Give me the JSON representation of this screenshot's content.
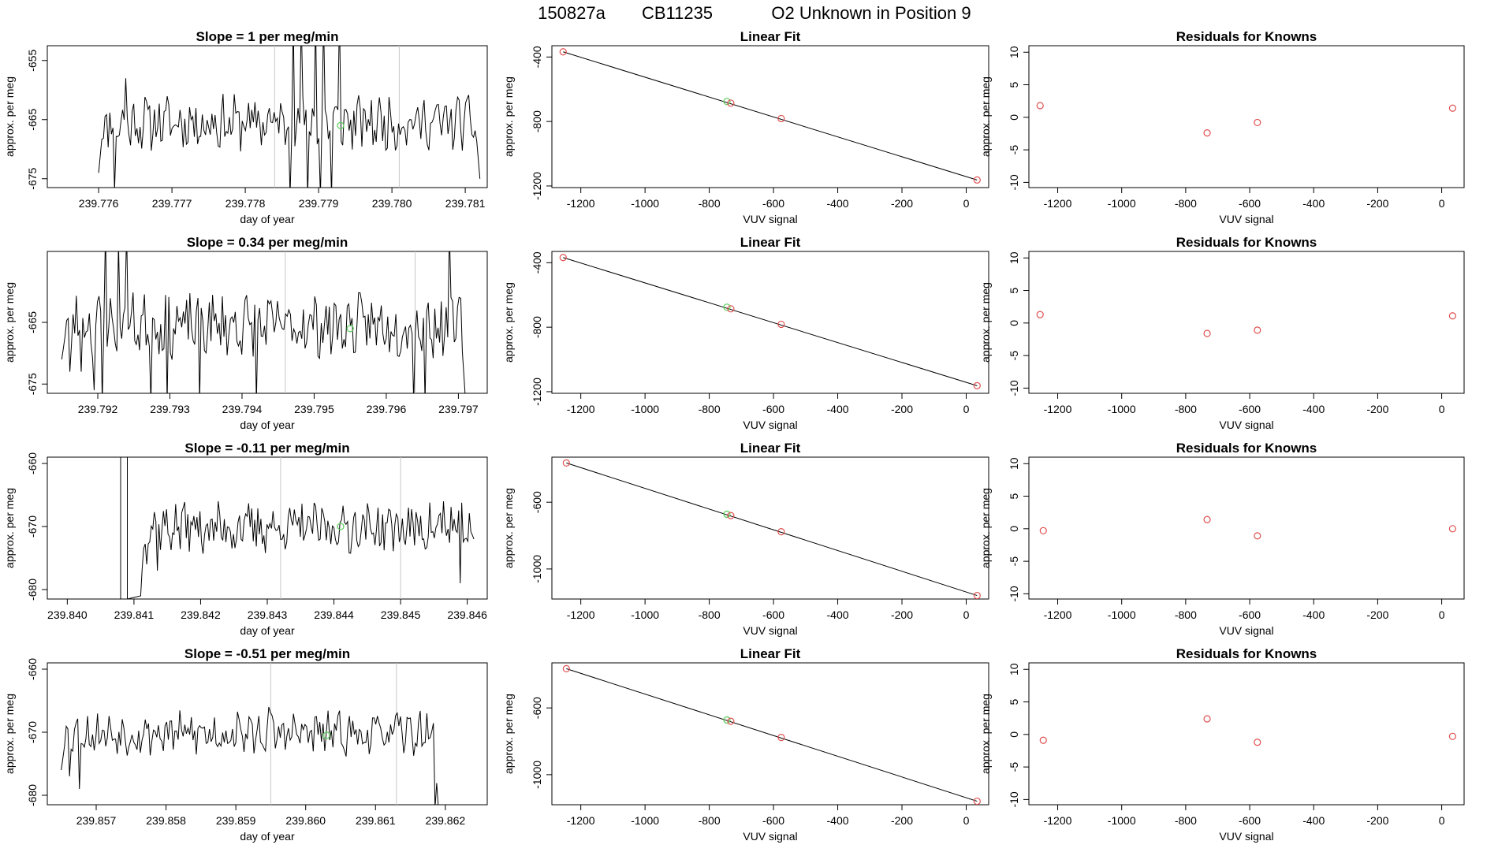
{
  "figure": {
    "run_id": "150827a",
    "tank_id": "CB11235",
    "description": "O2 Unknown in Position  9"
  },
  "colors": {
    "trace": "#000000",
    "known": "#e05050",
    "unknown": "#60d060",
    "vline": "#c8c8c8",
    "axis": "#000000"
  },
  "chart_data": [
    {
      "type": "line",
      "row": 0,
      "title": "Slope =  1  per meg/min",
      "xlabel": "day of year",
      "ylabel": "approx. per meg",
      "xlim": [
        239.7753,
        239.7813
      ],
      "ylim": [
        -676.5,
        -652.5
      ],
      "xticks": [
        239.776,
        239.777,
        239.778,
        239.779,
        239.78,
        239.781
      ],
      "xtick_labels": [
        "239.776",
        "239.777",
        "239.778",
        "239.779",
        "239.780",
        "239.781"
      ],
      "yticks": [
        -675,
        -665,
        -655
      ],
      "ytick_labels": [
        "-675",
        "-665",
        "-655"
      ],
      "vlines": [
        239.7784,
        239.7801
      ],
      "series": {
        "x_start": 239.776,
        "x_end": 239.7812,
        "n": 240,
        "mean": -665.5,
        "amp": 3.8,
        "start_drop": -674,
        "end_drop": -675,
        "spikes": [
          [
            0.5,
            -678
          ],
          [
            0.51,
            -648
          ],
          [
            0.53,
            -648
          ],
          [
            0.55,
            -678
          ],
          [
            0.57,
            -648
          ],
          [
            0.58,
            -678
          ],
          [
            0.59,
            -648
          ],
          [
            0.61,
            -678
          ],
          [
            0.63,
            -647
          ],
          [
            0.04,
            -677
          ],
          [
            0.07,
            -658
          ]
        ],
        "seed": 11
      },
      "marker": {
        "x": 239.7793,
        "y": -666
      }
    },
    {
      "type": "scatter_fit",
      "row": 0,
      "title": "Linear Fit",
      "xlabel": "VUV signal",
      "ylabel": "approx. per meg",
      "xlim": [
        -1290,
        70
      ],
      "ylim": [
        -1210,
        -330
      ],
      "xticks": [
        -1200,
        -1000,
        -800,
        -600,
        -400,
        -200,
        0
      ],
      "xtick_labels": [
        "-1200",
        "-1000",
        "-800",
        "-600",
        "-400",
        "-200",
        "0"
      ],
      "yticks": [
        -1200,
        -800,
        -400
      ],
      "ytick_labels": [
        "-1200",
        "-800",
        "-400"
      ],
      "fit": {
        "slope": 0.625,
        "intercept": -1183
      },
      "knowns": [
        [
          -1255,
          -368
        ],
        [
          -733,
          -686
        ],
        [
          -576,
          -782
        ],
        [
          34,
          -1163
        ]
      ],
      "unknown": [
        -745,
        -676
      ]
    },
    {
      "type": "residuals",
      "row": 0,
      "title": "Residuals for Knowns",
      "xlabel": "VUV signal",
      "ylabel": "approx. per meg",
      "xlim": [
        -1290,
        70
      ],
      "ylim": [
        -10.8,
        11
      ],
      "xticks": [
        -1200,
        -1000,
        -800,
        -600,
        -400,
        -200,
        0
      ],
      "xtick_labels": [
        "-1200",
        "-1000",
        "-800",
        "-600",
        "-400",
        "-200",
        "0"
      ],
      "yticks": [
        -10,
        -5,
        0,
        5,
        10
      ],
      "ytick_labels": [
        "-10",
        "-5",
        "0",
        "5",
        "10"
      ],
      "points": [
        [
          -1255,
          1.8
        ],
        [
          -733,
          -2.4
        ],
        [
          -576,
          -0.8
        ],
        [
          34,
          1.4
        ]
      ]
    },
    {
      "type": "line",
      "row": 1,
      "title": "Slope =  0.34  per meg/min",
      "xlabel": "day of year",
      "ylabel": "approx. per meg",
      "xlim": [
        239.7913,
        239.7974
      ],
      "ylim": [
        -676.5,
        -653.5
      ],
      "xticks": [
        239.792,
        239.793,
        239.794,
        239.795,
        239.796,
        239.797
      ],
      "xtick_labels": [
        "239.792",
        "239.793",
        "239.794",
        "239.795",
        "239.796",
        "239.797"
      ],
      "yticks": [
        -675,
        -665
      ],
      "ytick_labels": [
        "-675",
        "-665"
      ],
      "vlines": [
        239.7946,
        239.7964
      ],
      "series": {
        "x_start": 239.7915,
        "x_end": 239.7971,
        "n": 250,
        "mean": -665.5,
        "amp": 4.2,
        "start_drop": -671,
        "end_drop": -678,
        "spikes": [
          [
            0.02,
            -673
          ],
          [
            0.05,
            -673
          ],
          [
            0.08,
            -676
          ],
          [
            0.1,
            -678
          ],
          [
            0.11,
            -650
          ],
          [
            0.14,
            -652
          ],
          [
            0.16,
            -650
          ],
          [
            0.22,
            -678
          ],
          [
            0.26,
            -678
          ],
          [
            0.34,
            -678
          ],
          [
            0.48,
            -678
          ],
          [
            0.87,
            -678
          ],
          [
            0.9,
            -678
          ],
          [
            0.96,
            -650
          ]
        ],
        "seed": 23
      },
      "marker": {
        "x": 239.7955,
        "y": -666
      }
    },
    {
      "type": "scatter_fit",
      "row": 1,
      "title": "Linear Fit",
      "xlabel": "VUV signal",
      "ylabel": "approx. per meg",
      "xlim": [
        -1290,
        70
      ],
      "ylim": [
        -1210,
        -330
      ],
      "xticks": [
        -1200,
        -1000,
        -800,
        -600,
        -400,
        -200,
        0
      ],
      "xtick_labels": [
        "-1200",
        "-1000",
        "-800",
        "-600",
        "-400",
        "-200",
        "0"
      ],
      "yticks": [
        -1200,
        -800,
        -400
      ],
      "ytick_labels": [
        "-1200",
        "-800",
        "-400"
      ],
      "fit": {
        "slope": 0.625,
        "intercept": -1183
      },
      "knowns": [
        [
          -1255,
          -368
        ],
        [
          -733,
          -686
        ],
        [
          -576,
          -782
        ],
        [
          34,
          -1163
        ]
      ],
      "unknown": [
        -745,
        -676
      ]
    },
    {
      "type": "residuals",
      "row": 1,
      "title": "Residuals for Knowns",
      "xlabel": "VUV signal",
      "ylabel": "approx. per meg",
      "xlim": [
        -1290,
        70
      ],
      "ylim": [
        -10.8,
        11
      ],
      "xticks": [
        -1200,
        -1000,
        -800,
        -600,
        -400,
        -200,
        0
      ],
      "xtick_labels": [
        "-1200",
        "-1000",
        "-800",
        "-600",
        "-400",
        "-200",
        "0"
      ],
      "yticks": [
        -10,
        -5,
        0,
        5,
        10
      ],
      "ytick_labels": [
        "-10",
        "-5",
        "0",
        "5",
        "10"
      ],
      "points": [
        [
          -1255,
          1.3
        ],
        [
          -733,
          -1.6
        ],
        [
          -576,
          -1.1
        ],
        [
          34,
          1.1
        ]
      ]
    },
    {
      "type": "line",
      "row": 2,
      "title": "Slope =  -0.11  per meg/min",
      "xlabel": "day of year",
      "ylabel": "approx. per meg",
      "xlim": [
        239.8397,
        239.8463
      ],
      "ylim": [
        -681.5,
        -659
      ],
      "xticks": [
        239.84,
        239.841,
        239.842,
        239.843,
        239.844,
        239.845,
        239.846
      ],
      "xtick_labels": [
        "239.840",
        "239.841",
        "239.842",
        "239.843",
        "239.844",
        "239.845",
        "239.846"
      ],
      "yticks": [
        -680,
        -670,
        -660
      ],
      "ytick_labels": [
        "-680",
        "-670",
        "-660"
      ],
      "vlines": [
        239.8432,
        239.845
      ],
      "series": {
        "x_start": 239.8411,
        "x_end": 239.8461,
        "n": 220,
        "mean": -670.2,
        "amp": 3.3,
        "start_drop": -680,
        "end_drop": -672,
        "spikes": [
          [
            0.0,
            -681
          ],
          [
            0.02,
            -676
          ],
          [
            0.05,
            -677
          ],
          [
            0.13,
            -667
          ],
          [
            0.91,
            -666
          ],
          [
            0.96,
            -679
          ]
        ],
        "seed": 37,
        "pre": [
          [
            239.8408,
            -681.5
          ],
          [
            239.8408,
            -659
          ],
          [
            239.8409,
            -659
          ],
          [
            239.8409,
            -681.5
          ]
        ]
      },
      "marker": {
        "x": 239.8441,
        "y": -670
      }
    },
    {
      "type": "scatter_fit",
      "row": 2,
      "title": "Linear Fit",
      "xlabel": "VUV signal",
      "ylabel": "approx. per meg",
      "xlim": [
        -1290,
        70
      ],
      "ylim": [
        -1180,
        -330
      ],
      "xticks": [
        -1200,
        -1000,
        -800,
        -600,
        -400,
        -200,
        0
      ],
      "xtick_labels": [
        "-1200",
        "-1000",
        "-800",
        "-600",
        "-400",
        "-200",
        "0"
      ],
      "yticks": [
        -1000,
        -600
      ],
      "ytick_labels": [
        "-1000",
        "-600"
      ],
      "fit": {
        "slope": 0.62,
        "intercept": -1138
      },
      "knowns": [
        [
          -1245,
          -365
        ],
        [
          -733,
          -680
        ],
        [
          -576,
          -777
        ],
        [
          34,
          -1159
        ]
      ],
      "unknown": [
        -745,
        -672
      ]
    },
    {
      "type": "residuals",
      "row": 2,
      "title": "Residuals for Knowns",
      "xlabel": "VUV signal",
      "ylabel": "approx. per meg",
      "xlim": [
        -1290,
        70
      ],
      "ylim": [
        -10.8,
        11
      ],
      "xticks": [
        -1200,
        -1000,
        -800,
        -600,
        -400,
        -200,
        0
      ],
      "xtick_labels": [
        "-1200",
        "-1000",
        "-800",
        "-600",
        "-400",
        "-200",
        "0"
      ],
      "yticks": [
        -10,
        -5,
        0,
        5,
        10
      ],
      "ytick_labels": [
        "-10",
        "-5",
        "0",
        "5",
        "10"
      ],
      "points": [
        [
          -1245,
          -0.3
        ],
        [
          -733,
          1.4
        ],
        [
          -576,
          -1.1
        ],
        [
          34,
          0.0
        ]
      ]
    },
    {
      "type": "line",
      "row": 3,
      "title": "Slope =  -0.51  per meg/min",
      "xlabel": "day of year",
      "ylabel": "approx. per meg",
      "xlim": [
        239.8563,
        239.8626
      ],
      "ylim": [
        -681.5,
        -659
      ],
      "xticks": [
        239.857,
        239.858,
        239.859,
        239.86,
        239.861,
        239.862
      ],
      "xtick_labels": [
        "239.857",
        "239.858",
        "239.859",
        "239.860",
        "239.861",
        "239.862"
      ],
      "yticks": [
        -680,
        -670,
        -660
      ],
      "ytick_labels": [
        "-680",
        "-670",
        "-660"
      ],
      "vlines": [
        239.8595,
        239.8613
      ],
      "series": {
        "x_start": 239.8565,
        "x_end": 239.8619,
        "n": 230,
        "mean": -670.2,
        "amp": 2.8,
        "start_drop": -676,
        "end_drop": -682,
        "spikes": [
          [
            0.02,
            -677
          ],
          [
            0.03,
            -673
          ],
          [
            0.05,
            -679
          ],
          [
            0.55,
            -666
          ],
          [
            0.97,
            -667
          ],
          [
            0.99,
            -682
          ]
        ],
        "seed": 53
      },
      "marker": {
        "x": 239.8603,
        "y": -670.5
      }
    },
    {
      "type": "scatter_fit",
      "row": 3,
      "title": "Linear Fit",
      "xlabel": "VUV signal",
      "ylabel": "approx. per meg",
      "xlim": [
        -1290,
        70
      ],
      "ylim": [
        -1180,
        -330
      ],
      "xticks": [
        -1200,
        -1000,
        -800,
        -600,
        -400,
        -200,
        0
      ],
      "xtick_labels": [
        "-1200",
        "-1000",
        "-800",
        "-600",
        "-400",
        "-200",
        "0"
      ],
      "yticks": [
        -1000,
        -600
      ],
      "ytick_labels": [
        "-1000",
        "-600"
      ],
      "fit": {
        "slope": 0.62,
        "intercept": -1138
      },
      "knowns": [
        [
          -1245,
          -365
        ],
        [
          -733,
          -680
        ],
        [
          -576,
          -777
        ],
        [
          34,
          -1159
        ]
      ],
      "unknown": [
        -745,
        -672
      ]
    },
    {
      "type": "residuals",
      "row": 3,
      "title": "Residuals for Knowns",
      "xlabel": "VUV signal",
      "ylabel": "approx. per meg",
      "xlim": [
        -1290,
        70
      ],
      "ylim": [
        -10.8,
        11
      ],
      "xticks": [
        -1200,
        -1000,
        -800,
        -600,
        -400,
        -200,
        0
      ],
      "xtick_labels": [
        "-1200",
        "-1000",
        "-800",
        "-600",
        "-400",
        "-200",
        "0"
      ],
      "yticks": [
        -10,
        -5,
        0,
        5,
        10
      ],
      "ytick_labels": [
        "-10",
        "-5",
        "0",
        "5",
        "10"
      ],
      "points": [
        [
          -1245,
          -0.9
        ],
        [
          -733,
          2.4
        ],
        [
          -576,
          -1.2
        ],
        [
          34,
          -0.3
        ]
      ]
    }
  ]
}
